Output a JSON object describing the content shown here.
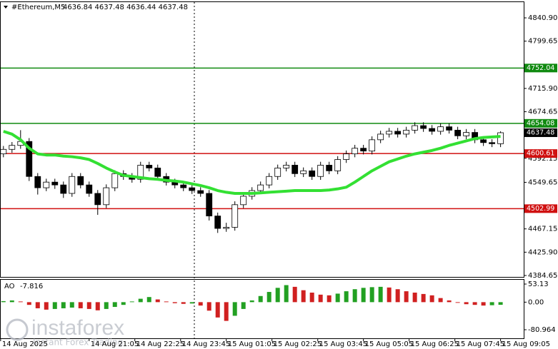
{
  "chart_data": {
    "type": "candlestick",
    "title": "#Ethereum,M5",
    "ohlc_label": "4636.84 4637.48 4636.44 4637.48",
    "xlim": [
      -0.4,
      60.7
    ],
    "xticks": [
      {
        "value": -0.33,
        "label": "14 Aug 2025"
      },
      {
        "value": 10,
        "label": "14 Aug 21:05"
      },
      {
        "value": 15.33,
        "label": "14 Aug 22:25"
      },
      {
        "value": 20.67,
        "label": "14 Aug 23:45"
      },
      {
        "value": 26,
        "label": "15 Aug 01:05"
      },
      {
        "value": 31.33,
        "label": "15 Aug 02:25"
      },
      {
        "value": 36.67,
        "label": "15 Aug 03:45"
      },
      {
        "value": 42,
        "label": "15 Aug 05:05"
      },
      {
        "value": 47.33,
        "label": "15 Aug 06:25"
      },
      {
        "value": 52.67,
        "label": "15 Aug 07:45"
      },
      {
        "value": 58,
        "label": "15 Aug 09:05"
      }
    ],
    "ylim": [
      4382.1,
      4870
    ],
    "yticks": [
      {
        "value": 4840.9,
        "label": "4840.90"
      },
      4799.65,
      {
        "value": 4715.9,
        "label": "4715.90"
      },
      4674.65,
      4592.15,
      4549.65,
      4467.15,
      {
        "value": 4425.9,
        "label": "4425.90"
      },
      4384.65
    ],
    "up_color": "#ffffff",
    "down_color": "#000000",
    "open": [
      4600,
      4608,
      4615,
      4622,
      4560,
      4540,
      4550,
      4545,
      4530,
      4560,
      4545,
      4530,
      4510,
      4540,
      4565,
      4560,
      4555,
      4580,
      4575,
      4560,
      4550,
      4545,
      4540,
      4535,
      4530,
      4490,
      4468,
      4470,
      4510,
      4525,
      4535,
      4545,
      4560,
      4575,
      4580,
      4565,
      4570,
      4560,
      4580,
      4570,
      4590,
      4600,
      4610,
      4605,
      4625,
      4635,
      4640,
      4635,
      4642,
      4650,
      4645,
      4640,
      4648,
      4642,
      4632,
      4638,
      4625,
      4620,
      4618
    ],
    "high": [
      4614,
      4621,
      4642,
      4628,
      4566,
      4556,
      4556,
      4551,
      4566,
      4566,
      4551,
      4536,
      4546,
      4571,
      4571,
      4566,
      4586,
      4586,
      4581,
      4566,
      4556,
      4551,
      4546,
      4541,
      4536,
      4496,
      4478,
      4516,
      4531,
      4541,
      4551,
      4566,
      4581,
      4586,
      4586,
      4576,
      4576,
      4586,
      4586,
      4596,
      4606,
      4616,
      4616,
      4631,
      4641,
      4646,
      4646,
      4648,
      4656,
      4656,
      4651,
      4654,
      4654,
      4648,
      4644,
      4644,
      4631,
      4626,
      4640
    ],
    "low": [
      4594,
      4602,
      4609,
      4552,
      4528,
      4534,
      4538,
      4522,
      4524,
      4539,
      4524,
      4492,
      4504,
      4534,
      4554,
      4549,
      4549,
      4569,
      4554,
      4544,
      4539,
      4534,
      4529,
      4524,
      4482,
      4460,
      4462,
      4464,
      4504,
      4519,
      4529,
      4539,
      4554,
      4569,
      4559,
      4559,
      4554,
      4554,
      4564,
      4564,
      4584,
      4594,
      4599,
      4599,
      4619,
      4629,
      4629,
      4629,
      4636,
      4639,
      4634,
      4634,
      4636,
      4626,
      4626,
      4619,
      4614,
      4612,
      4612
    ],
    "close": [
      4608,
      4615,
      4622,
      4560,
      4540,
      4550,
      4545,
      4530,
      4560,
      4545,
      4530,
      4510,
      4540,
      4565,
      4560,
      4555,
      4580,
      4575,
      4560,
      4550,
      4545,
      4540,
      4535,
      4530,
      4490,
      4468,
      4470,
      4510,
      4525,
      4535,
      4545,
      4560,
      4575,
      4580,
      4565,
      4570,
      4560,
      4580,
      4570,
      4590,
      4600,
      4610,
      4605,
      4625,
      4635,
      4640,
      4635,
      4642,
      4650,
      4645,
      4640,
      4648,
      4642,
      4632,
      4638,
      4625,
      4620,
      4618,
      4637.48
    ],
    "ma": {
      "color": "#33e033",
      "values": [
        4640,
        4635,
        4625,
        4610,
        4600,
        4598,
        4598,
        4596,
        4595,
        4593,
        4590,
        4583,
        4575,
        4568,
        4562,
        4560,
        4558,
        4556,
        4555,
        4553,
        4552,
        4550,
        4547,
        4544,
        4540,
        4535,
        4532,
        4530,
        4530,
        4530,
        4531,
        4532,
        4533,
        4534,
        4535,
        4535,
        4535,
        4535,
        4536,
        4538,
        4541,
        4550,
        4560,
        4570,
        4578,
        4586,
        4591,
        4596,
        4600,
        4603,
        4606,
        4610,
        4615,
        4619,
        4623,
        4627,
        4629,
        4630,
        4631
      ]
    },
    "levels": [
      {
        "value": 4752.04,
        "color": "#108a10"
      },
      {
        "value": 4654.08,
        "color": "#108a10"
      },
      {
        "value": 4600.61,
        "color": "#d01010"
      },
      {
        "value": 4502.99,
        "color": "#d01010"
      }
    ],
    "last_price": 4637.48,
    "ao": {
      "name": "AO",
      "current": -7.816,
      "up_color": "#22a022",
      "down_color": "#d02020",
      "ylim": [
        -106.1,
        65.7
      ],
      "yticks": [
        53.13,
        {
          "value": 0,
          "label": "0.00"
        },
        -80.964
      ],
      "values": [
        3,
        5,
        2,
        -8,
        -18,
        -22,
        -20,
        -18,
        -16,
        -18,
        -20,
        -24,
        -20,
        -14,
        -8,
        2,
        10,
        15,
        8,
        2,
        -3,
        -5,
        -4,
        -10,
        -25,
        -45,
        -55,
        -40,
        -20,
        5,
        18,
        30,
        42,
        50,
        45,
        35,
        28,
        22,
        20,
        25,
        32,
        38,
        42,
        44,
        45,
        43,
        38,
        32,
        28,
        24,
        20,
        12,
        5,
        -2,
        -6,
        -8,
        -10,
        -9,
        -7.816
      ]
    },
    "watermark": {
      "brand": "instaforex",
      "tagline": "Instant Forex Trading"
    }
  }
}
